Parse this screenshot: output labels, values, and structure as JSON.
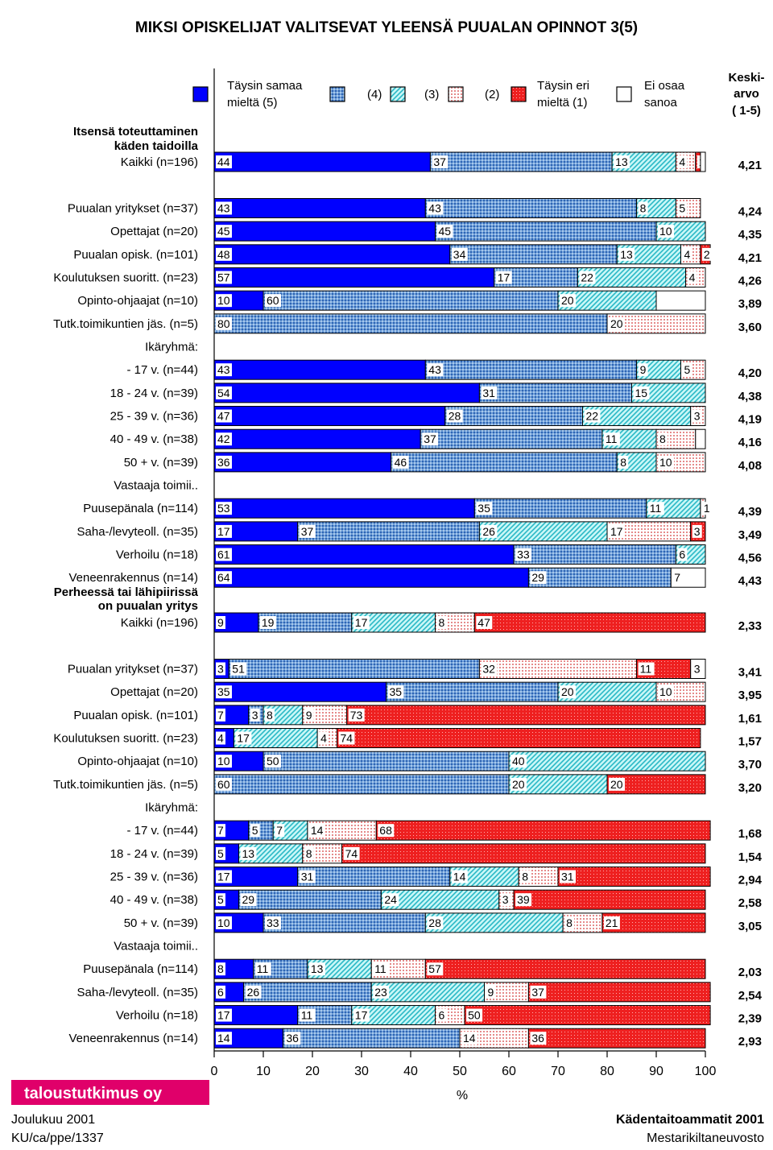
{
  "colors": {
    "c5": "#0000ff",
    "c4": "#6fa0d8",
    "c3": "#9cefef",
    "c2": "#f3b5b5",
    "c1": "#ee2020",
    "c0": "#ffffff"
  },
  "chart_data": {
    "type": "bar",
    "title": "MIKSI OPISKELIJAT VALITSEVAT YLEENSÄ PUUALAN OPINNOT 3(5)",
    "xlabel": "%",
    "xlim": [
      0,
      100
    ],
    "x_ticks": [
      "0",
      "10",
      "20",
      "30",
      "40",
      "50",
      "60",
      "70",
      "80",
      "90",
      "100"
    ],
    "mean_header": [
      "Keski-",
      "arvo",
      "( 1-5)"
    ],
    "legend": [
      {
        "key": "c5",
        "label": [
          "Täysin samaa",
          "mieltä (5)"
        ]
      },
      {
        "key": "c4",
        "label": [
          "(4)"
        ]
      },
      {
        "key": "c3",
        "label": [
          "(3)"
        ]
      },
      {
        "key": "c2",
        "label": [
          "(2)"
        ]
      },
      {
        "key": "c1",
        "label": [
          "Täysin eri",
          "mieltä (1)"
        ]
      },
      {
        "key": "c0",
        "label": [
          "Ei osaa",
          "sanoa"
        ]
      }
    ],
    "series_order": [
      "c5",
      "c4",
      "c3",
      "c2",
      "c1",
      "c0"
    ],
    "blocks": [
      {
        "heading": [
          "Itsensä toteuttaminen",
          "käden taidoilla"
        ],
        "rows": [
          {
            "label": "Kaikki (n=196)",
            "values": [
              44,
              37,
              13,
              4,
              1,
              1
            ],
            "texts": [
              "44",
              "37",
              "13",
              "4",
              "1",
              ""
            ],
            "mean": "4,21"
          },
          {
            "label": "Puualan yritykset (n=37)",
            "values": [
              43,
              43,
              8,
              5,
              0,
              0
            ],
            "texts": [
              "43",
              "43",
              "8",
              "5",
              "",
              ""
            ],
            "mean": "4,24"
          },
          {
            "label": "Opettajat (n=20)",
            "values": [
              45,
              45,
              10,
              0,
              0,
              0
            ],
            "texts": [
              "45",
              "45",
              "10",
              "",
              "",
              ""
            ],
            "mean": "4,35"
          },
          {
            "label": "Puualan opisk. (n=101)",
            "values": [
              48,
              34,
              13,
              4,
              2,
              0
            ],
            "texts": [
              "48",
              "34",
              "13",
              "4",
              "2",
              ""
            ],
            "mean": "4,21"
          },
          {
            "label": "Koulutuksen suoritt. (n=23)",
            "values": [
              57,
              17,
              22,
              4,
              0,
              0
            ],
            "texts": [
              "57",
              "17",
              "22",
              "4",
              "",
              ""
            ],
            "mean": "4,26"
          },
          {
            "label": "Opinto-ohjaajat (n=10)",
            "values": [
              10,
              60,
              20,
              0,
              0,
              10
            ],
            "texts": [
              "10",
              "60",
              "20",
              "",
              "",
              ""
            ],
            "mean": "3,89"
          },
          {
            "label": "Tutk.toimikuntien jäs. (n=5)",
            "values": [
              0,
              80,
              0,
              20,
              0,
              0
            ],
            "texts": [
              "",
              "80",
              "",
              "20",
              "",
              ""
            ],
            "mean": "3,60"
          },
          {
            "label": "Ikäryhmä:",
            "group": true
          },
          {
            "label": "- 17 v.  (n=44)",
            "values": [
              43,
              43,
              9,
              5,
              0,
              0
            ],
            "texts": [
              "43",
              "43",
              "9",
              "5",
              "",
              ""
            ],
            "mean": "4,20"
          },
          {
            "label": "18 - 24 v. (n=39)",
            "values": [
              54,
              31,
              15,
              0,
              0,
              0
            ],
            "texts": [
              "54",
              "31",
              "15",
              "",
              "",
              ""
            ],
            "mean": "4,38"
          },
          {
            "label": "25 - 39 v. (n=36)",
            "values": [
              47,
              28,
              22,
              3,
              0,
              0
            ],
            "texts": [
              "47",
              "28",
              "22",
              "3",
              "",
              ""
            ],
            "mean": "4,19"
          },
          {
            "label": "40 - 49 v. (n=38)",
            "values": [
              42,
              37,
              11,
              8,
              0,
              2
            ],
            "texts": [
              "42",
              "37",
              "11",
              "8",
              "",
              ""
            ],
            "mean": "4,16"
          },
          {
            "label": "50 + v.  (n=39)",
            "values": [
              36,
              46,
              8,
              10,
              0,
              0
            ],
            "texts": [
              "36",
              "46",
              "8",
              "10",
              "",
              ""
            ],
            "mean": "4,08"
          },
          {
            "label": "Vastaaja toimii..",
            "group": true
          },
          {
            "label": "Puusepänala (n=114)",
            "values": [
              53,
              35,
              11,
              1,
              0,
              0
            ],
            "texts": [
              "53",
              "35",
              "11",
              "1",
              "",
              ""
            ],
            "mean": "4,39"
          },
          {
            "label": "Saha-/levyteoll. (n=35)",
            "values": [
              17,
              37,
              26,
              17,
              3,
              0
            ],
            "texts": [
              "17",
              "37",
              "26",
              "17",
              "3",
              ""
            ],
            "mean": "3,49"
          },
          {
            "label": "Verhoilu (n=18)",
            "values": [
              61,
              33,
              6,
              0,
              0,
              0
            ],
            "texts": [
              "61",
              "33",
              "6",
              "",
              "",
              ""
            ],
            "mean": "4,56"
          },
          {
            "label": "Veneenrakennus (n=14)",
            "values": [
              64,
              29,
              0,
              0,
              0,
              7
            ],
            "texts": [
              "64",
              "29",
              "",
              "",
              "",
              "7"
            ],
            "mean": "4,43"
          }
        ]
      },
      {
        "heading": [
          "Perheessä tai lähipiirissä",
          "on puualan yritys"
        ],
        "rows": [
          {
            "label": "Kaikki (n=196)",
            "values": [
              9,
              19,
              17,
              8,
              47,
              0
            ],
            "texts": [
              "9",
              "19",
              "17",
              "8",
              "47",
              ""
            ],
            "mean": "2,33"
          },
          {
            "label": "Puualan yritykset (n=37)",
            "values": [
              3,
              51,
              0,
              32,
              11,
              3
            ],
            "texts": [
              "3",
              "51",
              "",
              "32",
              "11",
              "3"
            ],
            "mean": "3,41"
          },
          {
            "label": "Opettajat (n=20)",
            "values": [
              35,
              35,
              20,
              10,
              0,
              0
            ],
            "texts": [
              "35",
              "35",
              "20",
              "10",
              "",
              ""
            ],
            "mean": "3,95"
          },
          {
            "label": "Puualan opisk. (n=101)",
            "values": [
              7,
              3,
              8,
              9,
              73,
              0
            ],
            "texts": [
              "7",
              "3",
              "8",
              "9",
              "73",
              ""
            ],
            "mean": "1,61"
          },
          {
            "label": "Koulutuksen suoritt. (n=23)",
            "values": [
              4,
              0,
              17,
              4,
              74,
              0
            ],
            "texts": [
              "4",
              "",
              "17",
              "4",
              "74",
              ""
            ],
            "mean": "1,57"
          },
          {
            "label": "Opinto-ohjaajat (n=10)",
            "values": [
              10,
              50,
              40,
              0,
              0,
              0
            ],
            "texts": [
              "10",
              "50",
              "40",
              "",
              "",
              ""
            ],
            "mean": "3,70"
          },
          {
            "label": "Tutk.toimikuntien jäs. (n=5)",
            "values": [
              0,
              60,
              20,
              0,
              20,
              0
            ],
            "texts": [
              "",
              "60",
              "20",
              "",
              "20",
              ""
            ],
            "mean": "3,20"
          },
          {
            "label": "Ikäryhmä:",
            "group": true
          },
          {
            "label": "- 17 v.  (n=44)",
            "values": [
              7,
              5,
              7,
              14,
              68,
              0
            ],
            "texts": [
              "7",
              "5",
              "7",
              "14",
              "68",
              ""
            ],
            "mean": "1,68"
          },
          {
            "label": "18 - 24 v. (n=39)",
            "values": [
              5,
              0,
              13,
              8,
              74,
              0
            ],
            "texts": [
              "5",
              "",
              "13",
              "8",
              "74",
              ""
            ],
            "mean": "1,54"
          },
          {
            "label": "25 - 39 v. (n=36)",
            "values": [
              17,
              31,
              14,
              8,
              31,
              0
            ],
            "texts": [
              "17",
              "31",
              "14",
              "8",
              "31",
              ""
            ],
            "mean": "2,94"
          },
          {
            "label": "40 - 49 v. (n=38)",
            "values": [
              5,
              29,
              24,
              3,
              39,
              0
            ],
            "texts": [
              "5",
              "29",
              "24",
              "3",
              "39",
              ""
            ],
            "mean": "2,58"
          },
          {
            "label": "50 + v.  (n=39)",
            "values": [
              10,
              33,
              28,
              8,
              21,
              0
            ],
            "texts": [
              "10",
              "33",
              "28",
              "8",
              "21",
              ""
            ],
            "mean": "3,05"
          },
          {
            "label": "Vastaaja toimii..",
            "group": true
          },
          {
            "label": "Puusepänala (n=114)",
            "values": [
              8,
              11,
              13,
              11,
              57,
              0
            ],
            "texts": [
              "8",
              "11",
              "13",
              "11",
              "57",
              ""
            ],
            "mean": "2,03"
          },
          {
            "label": "Saha-/levyteoll. (n=35)",
            "values": [
              6,
              26,
              23,
              9,
              37,
              0
            ],
            "texts": [
              "6",
              "26",
              "23",
              "9",
              "37",
              ""
            ],
            "mean": "2,54"
          },
          {
            "label": "Verhoilu (n=18)",
            "values": [
              17,
              11,
              17,
              6,
              50,
              0
            ],
            "texts": [
              "17",
              "11",
              "17",
              "6",
              "50",
              ""
            ],
            "mean": "2,39"
          },
          {
            "label": "Veneenrakennus (n=14)",
            "values": [
              14,
              36,
              0,
              14,
              36,
              0
            ],
            "texts": [
              "14",
              "36",
              "",
              "14",
              "36",
              ""
            ],
            "mean": "2,93"
          }
        ]
      }
    ]
  },
  "footer": {
    "logo": "taloustutkimus oy",
    "date": "Joulukuu 2001",
    "code": "KU/ca/ppe/1337",
    "right_title": "Kädentaitoammatit 2001",
    "right_sub": "Mestarikiltaneuvosto"
  }
}
